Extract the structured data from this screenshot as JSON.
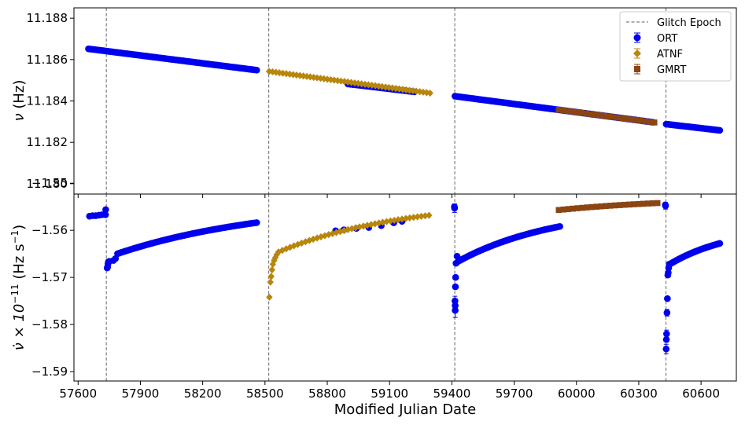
{
  "chart_data": {
    "type": "scatter",
    "xlabel": "Modified Julian Date",
    "xlim": [
      57580,
      60770
    ],
    "x_ticks": [
      "57600",
      "57900",
      "58200",
      "58500",
      "58800",
      "59100",
      "59400",
      "59700",
      "60000",
      "60300",
      "60600"
    ],
    "glitch_epochs": [
      57736,
      58518,
      59414,
      60431
    ],
    "legend": {
      "position": "top-right",
      "entries": [
        "Glitch Epoch",
        "ORT",
        "ATNF",
        "GMRT"
      ]
    },
    "colors": {
      "ORT": "#0000ee",
      "ATNF": "#b8860b",
      "GMRT": "#8b4513",
      "glitch": "#808080"
    },
    "panels": [
      {
        "ylabel_parts": [
          "ν",
          " (Hz)"
        ],
        "ylim": [
          11.1795,
          11.1885
        ],
        "y_ticks": [
          "11.188",
          "11.186",
          "11.184",
          "11.182",
          "11.180"
        ],
        "series": [
          {
            "name": "ORT",
            "marker": "circle",
            "segments": [
              {
                "x0": 57650,
                "x1": 58460,
                "y0": 11.18652,
                "y1": 11.18549,
                "n": 100
              },
              {
                "x0": 58900,
                "x1": 59220,
                "y0": 11.18482,
                "y1": 11.18444,
                "n": 28
              },
              {
                "x0": 59415,
                "x1": 60370,
                "y0": 11.18423,
                "y1": 11.18297,
                "n": 110
              },
              {
                "x0": 60432,
                "x1": 60690,
                "y0": 11.18288,
                "y1": 11.18258,
                "n": 34
              }
            ]
          },
          {
            "name": "ATNF",
            "marker": "diamond",
            "segments": [
              {
                "x0": 58520,
                "x1": 59295,
                "y0": 11.18543,
                "y1": 11.18438,
                "n": 48
              }
            ]
          },
          {
            "name": "GMRT",
            "marker": "square",
            "segments": [
              {
                "x0": 59915,
                "x1": 60375,
                "y0": 11.18357,
                "y1": 11.18296,
                "n": 22
              }
            ]
          }
        ]
      },
      {
        "ylabel_parts": [
          "ν̇ × 10",
          "−11",
          " (Hz s",
          "−1",
          ")"
        ],
        "ylim": [
          -1.592,
          -1.5523
        ],
        "y_ticks": [
          "−1.55",
          "−1.56",
          "−1.57",
          "−1.58",
          "−1.59"
        ],
        "series": [
          {
            "name": "ORT",
            "marker": "circle",
            "points": [
              [
                57655,
                -1.557
              ],
              [
                57670,
                -1.5569
              ],
              [
                57685,
                -1.5569
              ],
              [
                57700,
                -1.5568
              ],
              [
                57715,
                -1.5567
              ],
              [
                57732,
                -1.5567
              ],
              [
                57733,
                -1.5556
              ],
              [
                57740,
                -1.568
              ],
              [
                57742,
                -1.5678
              ],
              [
                57744,
                -1.5671
              ],
              [
                57746,
                -1.5667
              ],
              [
                57750,
                -1.5666
              ],
              [
                57770,
                -1.5664
              ],
              [
                57780,
                -1.566
              ]
            ],
            "recoveries": [
              {
                "t0": 57736,
                "x0": 57790,
                "x1": 58460,
                "y_inf": -1.5538,
                "amp": -0.012,
                "tau": 750,
                "n": 70
              },
              {
                "t0": 59414,
                "x0": 59430,
                "x1": 59920,
                "y_inf": -1.555,
                "amp": -0.012,
                "tau": 480,
                "n": 60
              },
              {
                "t0": 60431,
                "x0": 60452,
                "x1": 60690,
                "y_inf": -1.5592,
                "amp": -0.0085,
                "tau": 300,
                "n": 36
              }
            ],
            "points_extra": [
              [
                58840,
                -1.5601
              ],
              [
                58880,
                -1.5599
              ],
              [
                58940,
                -1.5596
              ],
              [
                59000,
                -1.5594
              ],
              [
                59060,
                -1.559
              ],
              [
                59120,
                -1.5584
              ],
              [
                59160,
                -1.5581
              ],
              [
                59412,
                -1.555
              ],
              [
                59413,
                -1.5553
              ],
              [
                59415,
                -1.575
              ],
              [
                59416,
                -1.576
              ],
              [
                59416,
                -1.577
              ],
              [
                59417,
                -1.572
              ],
              [
                59418,
                -1.57
              ],
              [
                59420,
                -1.567
              ],
              [
                59425,
                -1.5655
              ],
              [
                60428,
                -1.5546
              ],
              [
                60429,
                -1.5548
              ],
              [
                60432,
                -1.5852
              ],
              [
                60433,
                -1.5832
              ],
              [
                60434,
                -1.582
              ],
              [
                60436,
                -1.5775
              ],
              [
                60438,
                -1.5745
              ],
              [
                60440,
                -1.5695
              ],
              [
                60442,
                -1.569
              ],
              [
                60444,
                -1.568
              ],
              [
                60447,
                -1.5672
              ]
            ],
            "error_bars": [
              [
                59413,
                -1.5553,
                0.0009
              ],
              [
                59415,
                -1.575,
                0.001
              ],
              [
                59416,
                -1.577,
                0.0015
              ],
              [
                60432,
                -1.5852,
                0.001
              ],
              [
                60434,
                -1.582,
                0.0008
              ],
              [
                60436,
                -1.5775,
                0.0007
              ],
              [
                60429,
                -1.5548,
                0.0007
              ]
            ]
          },
          {
            "name": "ATNF",
            "marker": "diamond",
            "points": [
              [
                58521,
                -1.5742
              ],
              [
                58526,
                -1.571
              ],
              [
                58530,
                -1.5698
              ],
              [
                58534,
                -1.5684
              ],
              [
                58538,
                -1.5672
              ],
              [
                58544,
                -1.5664
              ],
              [
                58550,
                -1.5658
              ],
              [
                58556,
                -1.5652
              ]
            ],
            "recoveries": [
              {
                "t0": 58518,
                "x0": 58565,
                "x1": 59290,
                "y_inf": -1.5535,
                "amp": -0.012,
                "tau": 600,
                "n": 40
              }
            ]
          },
          {
            "name": "GMRT",
            "marker": "square",
            "recoveries": [
              {
                "t0": 59414,
                "x0": 59915,
                "x1": 60390,
                "y_inf": -1.553,
                "amp": -0.0062,
                "tau": 600,
                "n": 22
              }
            ]
          }
        ]
      }
    ]
  }
}
